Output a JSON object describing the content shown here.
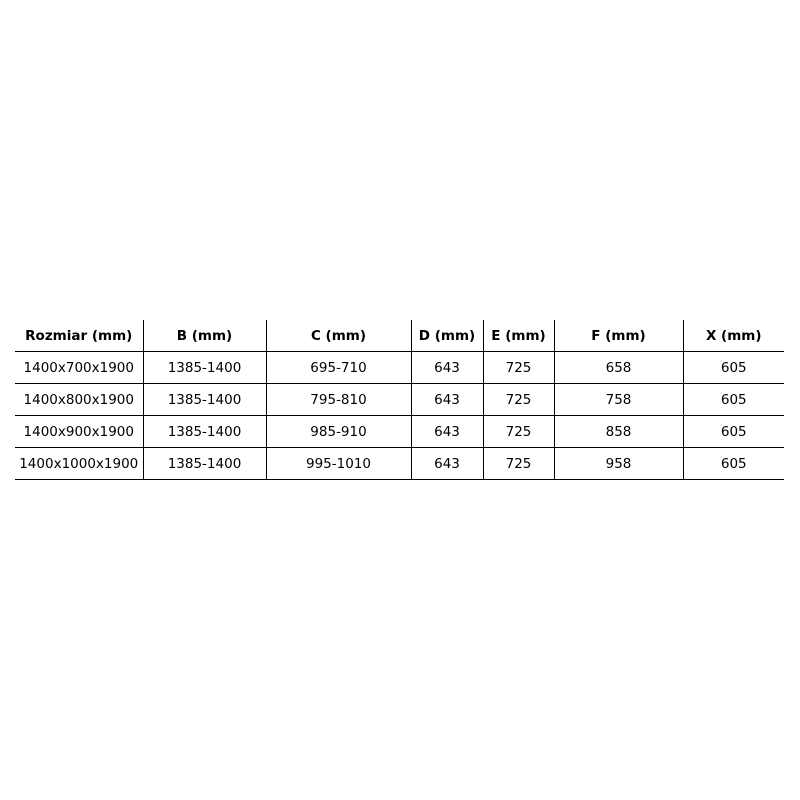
{
  "table": {
    "headers": [
      "Rozmiar (mm)",
      "B (mm)",
      "C (mm)",
      "D (mm)",
      "E (mm)",
      "F (mm)",
      "X (mm)"
    ],
    "rows": [
      [
        "1400x700x1900",
        "1385-1400",
        "695-710",
        "643",
        "725",
        "658",
        "605"
      ],
      [
        "1400x800x1900",
        "1385-1400",
        "795-810",
        "643",
        "725",
        "758",
        "605"
      ],
      [
        "1400x900x1900",
        "1385-1400",
        "985-910",
        "643",
        "725",
        "858",
        "605"
      ],
      [
        "1400x1000x1900",
        "1385-1400",
        "995-1010",
        "643",
        "725",
        "958",
        "605"
      ]
    ]
  }
}
